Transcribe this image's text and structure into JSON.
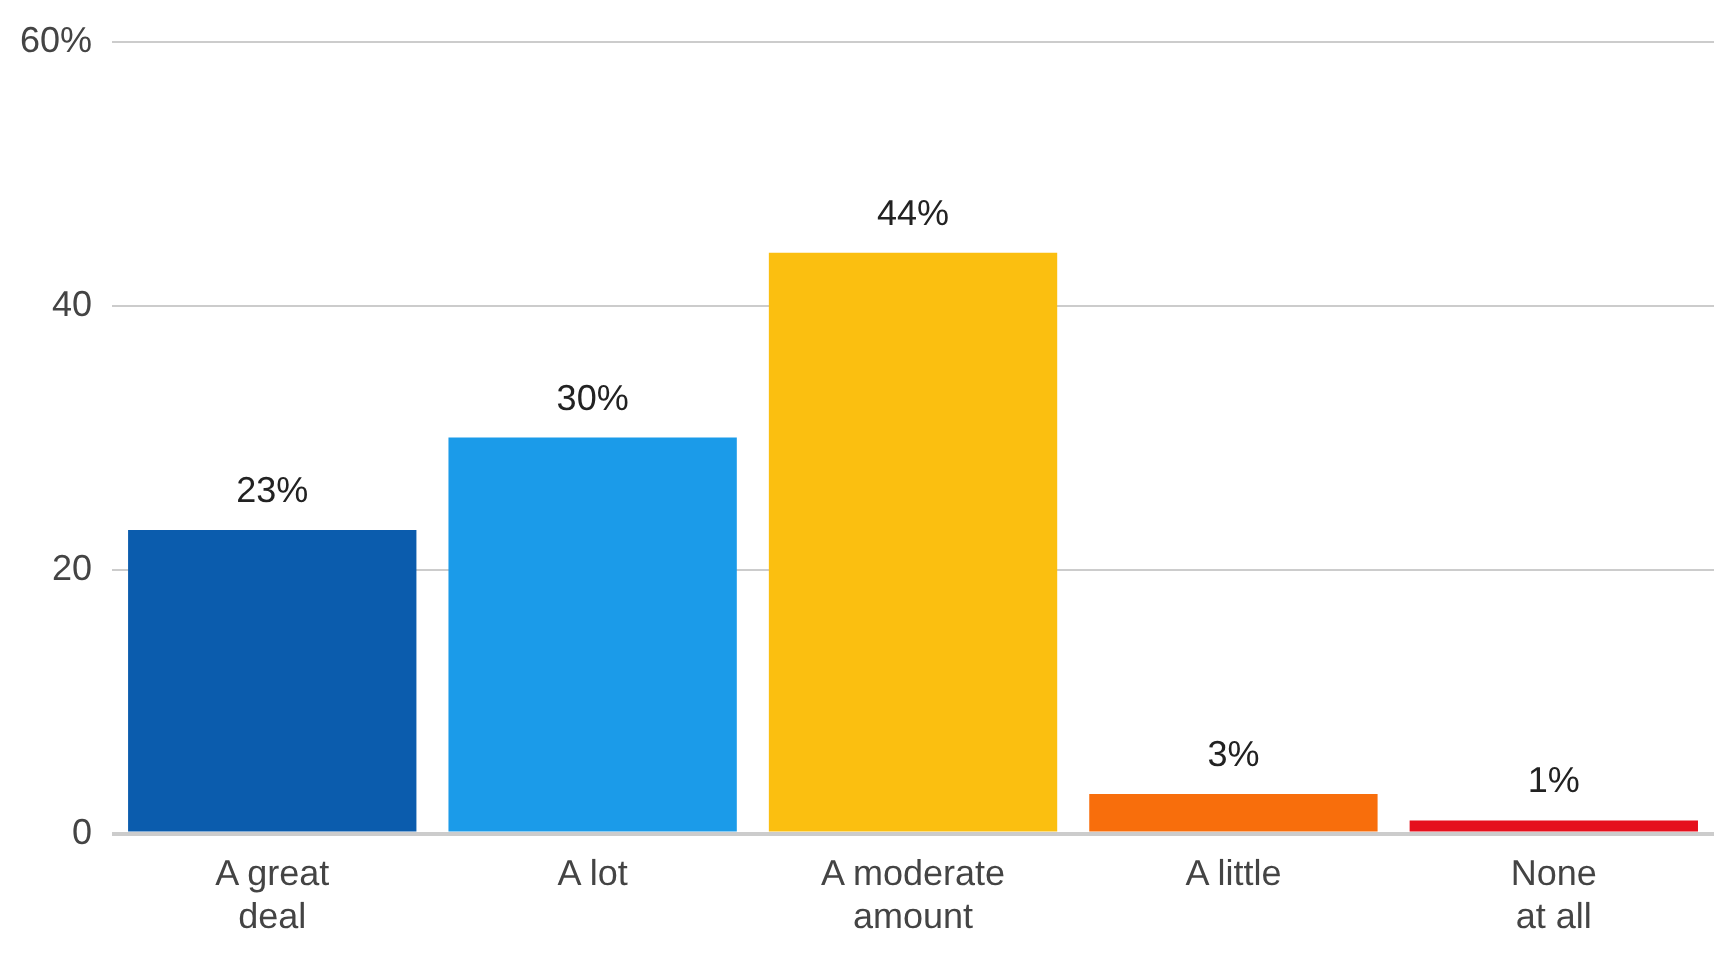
{
  "chart_data": {
    "type": "bar",
    "categories": [
      "A great deal",
      "A lot",
      "A moderate amount",
      "A little",
      "None at all"
    ],
    "values": [
      23,
      30,
      44,
      3,
      1
    ],
    "colors": [
      "#0b5cad",
      "#1b9be9",
      "#fbbf10",
      "#f86e0c",
      "#e5101d"
    ],
    "value_labels": [
      "23%",
      "30%",
      "44%",
      "3%",
      "1%"
    ],
    "ylim": [
      0,
      60
    ],
    "yticks": [
      0,
      20,
      40,
      {
        "value": 60,
        "label": "60%"
      }
    ],
    "grid": "y",
    "legend": false
  }
}
